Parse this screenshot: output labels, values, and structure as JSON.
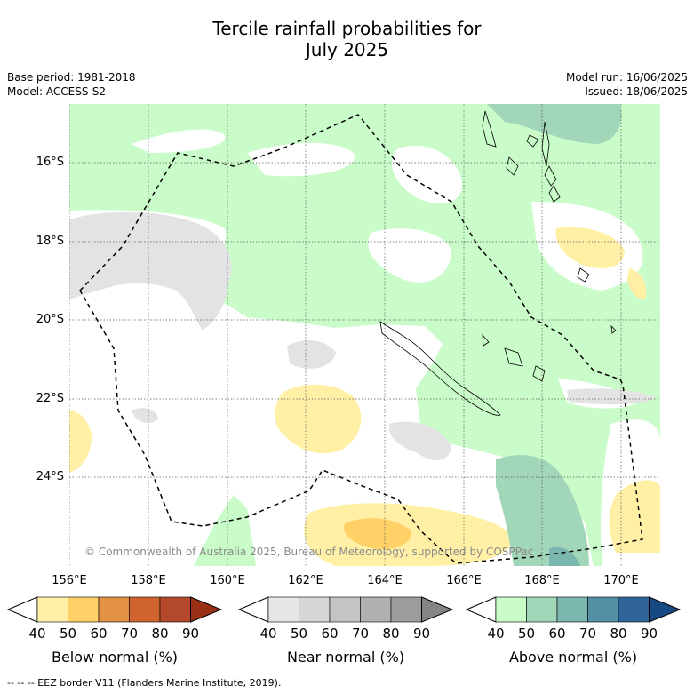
{
  "title_line1": "Tercile rainfall probabilities for",
  "title_line2": "July 2025",
  "meta": {
    "base_period": "Base period: 1981-2018",
    "model": "Model: ACCESS-S2",
    "model_run": "Model run: 16/06/2025",
    "issued": "Issued: 18/06/2025"
  },
  "axes": {
    "lat_labels": [
      "16°S",
      "18°S",
      "20°S",
      "22°S",
      "24°S"
    ],
    "lon_labels": [
      "156°E",
      "158°E",
      "160°E",
      "162°E",
      "164°E",
      "166°E",
      "168°E",
      "170°E"
    ]
  },
  "copyright": "© Commonwealth of Australia 2025, Bureau of Meteorology, supported by COSPPac",
  "colorbars": [
    {
      "title": "Below normal (%)",
      "ticks": [
        "40",
        "50",
        "60",
        "70",
        "80",
        "90"
      ],
      "colors": [
        "#fff0a6",
        "#ffd166",
        "#e39145",
        "#cf6431",
        "#b4492b",
        "#9a3016"
      ]
    },
    {
      "title": "Near normal (%)",
      "ticks": [
        "40",
        "50",
        "60",
        "70",
        "80",
        "90"
      ],
      "colors": [
        "#e6e6e6",
        "#d6d6d6",
        "#c4c4c4",
        "#b0b0b0",
        "#9c9c9c",
        "#858585"
      ]
    },
    {
      "title": "Above normal (%)",
      "ticks": [
        "40",
        "50",
        "60",
        "70",
        "80",
        "90"
      ],
      "colors": [
        "#c9fcc9",
        "#a1d6b9",
        "#7bb7ae",
        "#5490a3",
        "#2e6498",
        "#174a84"
      ]
    }
  ],
  "footer": "--  --  -- EEZ border V11 (Flanders Marine Institute, 2019)."
}
